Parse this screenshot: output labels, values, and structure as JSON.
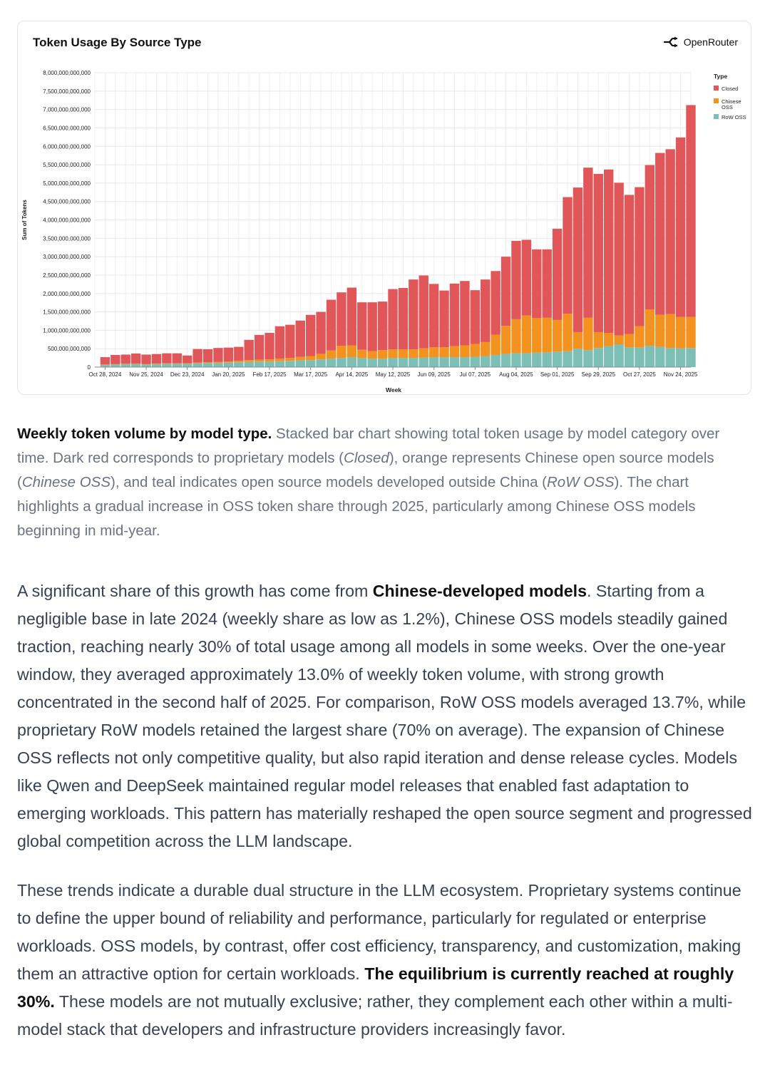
{
  "chart_card": {
    "title": "Token Usage By Source Type",
    "brand": "OpenRouter",
    "brand_icon": "openrouter-logo-icon"
  },
  "chart_data": {
    "type": "bar",
    "stacked": true,
    "title": "Token Usage By Source Type",
    "xlabel": "Week",
    "ylabel": "Sum of Tokens",
    "ylim": [
      0,
      8000000000000
    ],
    "y_ticks": [
      {
        "value": 0,
        "label": "0"
      },
      {
        "value": 500000000000,
        "label": "500,000,000,000"
      },
      {
        "value": 1000000000000,
        "label": "1,000,000,000,000"
      },
      {
        "value": 1500000000000,
        "label": "1,500,000,000,000"
      },
      {
        "value": 2000000000000,
        "label": "2,000,000,000,000"
      },
      {
        "value": 2500000000000,
        "label": "2,500,000,000,000"
      },
      {
        "value": 3000000000000,
        "label": "3,000,000,000,000"
      },
      {
        "value": 3500000000000,
        "label": "3,500,000,000,000"
      },
      {
        "value": 4000000000000,
        "label": "4,000,000,000,000"
      },
      {
        "value": 4500000000000,
        "label": "4,500,000,000,000"
      },
      {
        "value": 5000000000000,
        "label": "5,000,000,000,000"
      },
      {
        "value": 5500000000000,
        "label": "5,500,000,000,000"
      },
      {
        "value": 6000000000000,
        "label": "6,000,000,000,000"
      },
      {
        "value": 6500000000000,
        "label": "6,500,000,000,000"
      },
      {
        "value": 7000000000000,
        "label": "7,000,000,000,000"
      },
      {
        "value": 7500000000000,
        "label": "7,500,000,000,000"
      },
      {
        "value": 8000000000000,
        "label": "8,000,000,000,000"
      }
    ],
    "x_tick_labels": [
      {
        "week_index": 0,
        "label": "Oct 28, 2024"
      },
      {
        "week_index": 4,
        "label": "Nov 25, 2024"
      },
      {
        "week_index": 8,
        "label": "Dec 23, 2024"
      },
      {
        "week_index": 12,
        "label": "Jan 20, 2025"
      },
      {
        "week_index": 16,
        "label": "Feb 17, 2025"
      },
      {
        "week_index": 20,
        "label": "Mar 17, 2025"
      },
      {
        "week_index": 24,
        "label": "Apr 14, 2025"
      },
      {
        "week_index": 28,
        "label": "May 12, 2025"
      },
      {
        "week_index": 32,
        "label": "Jun 09, 2025"
      },
      {
        "week_index": 36,
        "label": "Jul 07, 2025"
      },
      {
        "week_index": 40,
        "label": "Aug 04, 2025"
      },
      {
        "week_index": 44,
        "label": "Sep 01, 2025"
      },
      {
        "week_index": 48,
        "label": "Sep 29, 2025"
      },
      {
        "week_index": 52,
        "label": "Oct 27, 2025"
      },
      {
        "week_index": 56,
        "label": "Nov 24, 2025"
      }
    ],
    "legend": {
      "title": "Type",
      "placement": "top-right"
    },
    "series": [
      {
        "name": "RoW OSS",
        "legend_label": "RoW OSS",
        "color": "#7dbfb5",
        "values": [
          60,
          70,
          80,
          80,
          70,
          80,
          90,
          90,
          90,
          100,
          110,
          110,
          120,
          130,
          140,
          150,
          150,
          160,
          170,
          180,
          190,
          210,
          230,
          250,
          270,
          250,
          230,
          230,
          250,
          250,
          250,
          260,
          270,
          270,
          270,
          270,
          280,
          300,
          330,
          360,
          380,
          380,
          390,
          400,
          420,
          430,
          500,
          460,
          520,
          570,
          620,
          540,
          530,
          580,
          550,
          520,
          510,
          520
        ]
      },
      {
        "name": "Chinese OSS",
        "legend_label": "Chinese OSS",
        "color": "#f4921f",
        "values": [
          10,
          10,
          10,
          10,
          10,
          15,
          15,
          15,
          15,
          20,
          25,
          30,
          30,
          40,
          50,
          55,
          60,
          70,
          80,
          95,
          110,
          150,
          220,
          330,
          320,
          220,
          200,
          230,
          230,
          230,
          230,
          250,
          270,
          270,
          300,
          320,
          350,
          380,
          550,
          760,
          920,
          1020,
          940,
          940,
          860,
          1020,
          450,
          880,
          430,
          360,
          240,
          360,
          580,
          990,
          870,
          920,
          850,
          840
        ]
      },
      {
        "name": "Closed",
        "legend_label": "Closed",
        "color": "#e15759",
        "values": [
          200,
          250,
          250,
          280,
          260,
          260,
          270,
          270,
          210,
          370,
          350,
          380,
          380,
          380,
          550,
          670,
          720,
          880,
          900,
          990,
          1120,
          1140,
          1380,
          1450,
          1570,
          1290,
          1330,
          1320,
          1640,
          1670,
          1900,
          1980,
          1720,
          1540,
          1700,
          1750,
          1460,
          1700,
          1730,
          1880,
          2130,
          2060,
          1870,
          1860,
          2480,
          3170,
          3930,
          4080,
          4300,
          4440,
          4150,
          3780,
          3780,
          3920,
          4400,
          4480,
          4880,
          5760
        ]
      }
    ]
  },
  "caption": {
    "title": "Weekly token volume by model type.",
    "t1": " Stacked bar chart showing total token usage by model category over time. Dark red corresponds to proprietary models (",
    "closed": "Closed",
    "t2": "), orange represents Chinese open source models (",
    "chinese": "Chinese OSS",
    "t3": "), and teal indicates open source models developed outside China (",
    "row": "RoW OSS",
    "t4": "). The chart highlights a gradual increase in OSS token share through 2025, particularly among Chinese OSS models beginning in mid-year."
  },
  "paragraph1": {
    "a": "A significant share of this growth has come from ",
    "bold": "Chinese-developed models",
    "b": ". Starting from a negligible base in late 2024 (weekly share as low as 1.2%), Chinese OSS models steadily gained traction, reaching nearly 30% of total usage among all models in some weeks. Over the one-year window, they averaged approximately 13.0% of weekly token volume, with strong growth concentrated in the second half of 2025. For comparison, RoW OSS models averaged 13.7%, while proprietary RoW models retained the largest share (70% on average). The expansion of Chinese OSS reflects not only competitive quality, but also rapid iteration and dense release cycles. Models like Qwen and DeepSeek maintained regular model releases that enabled fast adaptation to emerging workloads. This pattern has materially reshaped the open source segment and progressed global competition across the LLM landscape."
  },
  "paragraph2": {
    "a": "These trends indicate a durable dual structure in the LLM ecosystem. Proprietary systems continue to define the upper bound of reliability and performance, particularly for regulated or enterprise workloads. OSS models, by contrast, offer cost efficiency, transparency, and customization, making them an attractive option for certain workloads. ",
    "bold": "The equilibrium is currently reached at roughly 30%.",
    "b": " These models are not mutually exclusive; rather, they complement each other within a multi-model stack that developers and infrastructure providers increasingly favor."
  }
}
